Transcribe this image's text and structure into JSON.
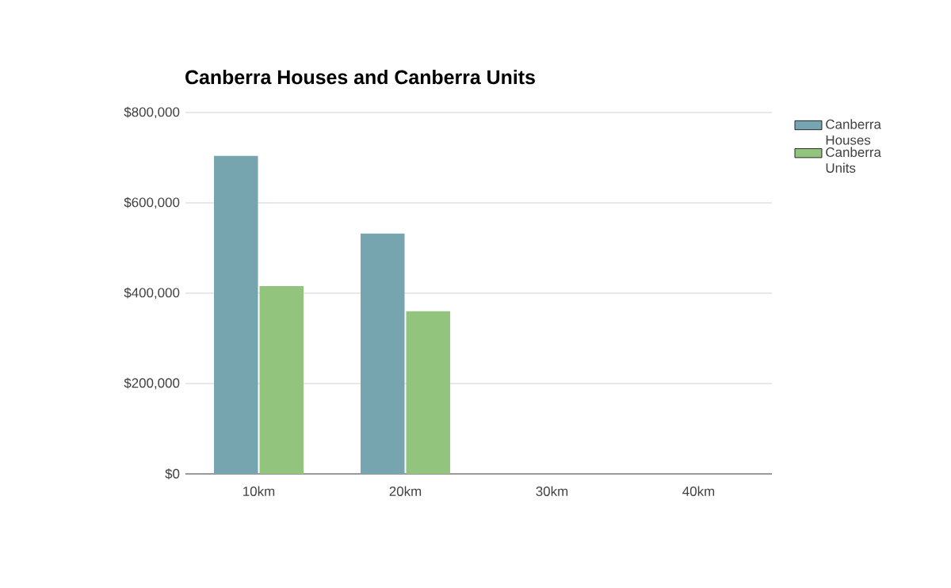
{
  "chart_data": {
    "type": "bar",
    "title": "Canberra Houses and Canberra Units",
    "categories": [
      "10km",
      "20km",
      "30km",
      "40km"
    ],
    "series": [
      {
        "name": "Canberra Houses",
        "color": "#76a5af",
        "values": [
          704000,
          532000,
          null,
          null
        ]
      },
      {
        "name": "Canberra Units",
        "color": "#93c47d",
        "values": [
          416000,
          360000,
          null,
          null
        ]
      }
    ],
    "ylim": [
      0,
      800000
    ],
    "yticks": [
      {
        "value": 0,
        "label": "$0"
      },
      {
        "value": 200000,
        "label": "$200,000"
      },
      {
        "value": 400000,
        "label": "$400,000"
      },
      {
        "value": 600000,
        "label": "$600,000"
      },
      {
        "value": 800000,
        "label": "$800,000"
      }
    ],
    "grid": "y",
    "legend": "right"
  }
}
